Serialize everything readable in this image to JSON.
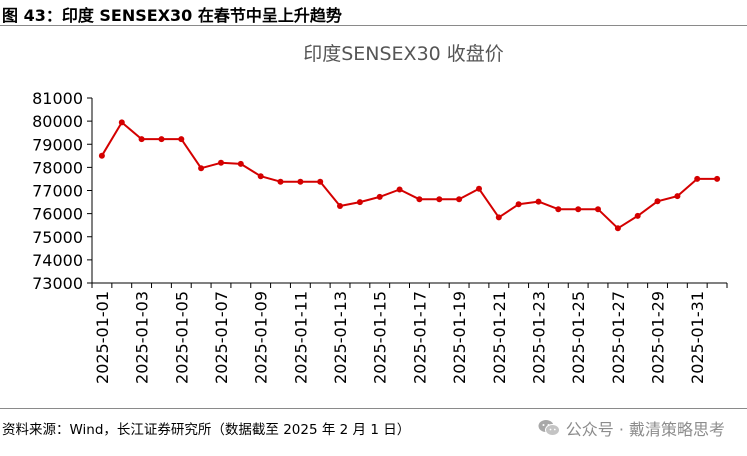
{
  "figure": {
    "title": "图 43：印度 SENSEX30 在春节中呈上升趋势",
    "source": "资料来源：Wind，长江证券研究所（数据截至 2025 年 2 月 1 日）",
    "watermark": "公众号 · 戴清策略思考"
  },
  "colors": {
    "line": "#d40000",
    "axis": "#000000",
    "title_text": "#555555",
    "rule": "#8a8a8a",
    "watermark": "#8c8c8c"
  },
  "chart_data": {
    "type": "line",
    "title": "印度SENSEX30 收盘价",
    "xlabel": "",
    "ylabel": "",
    "ylim": [
      73000,
      81000
    ],
    "yticks": [
      73000,
      74000,
      75000,
      76000,
      77000,
      78000,
      79000,
      80000,
      81000
    ],
    "grid": false,
    "x": [
      "2025-01-01",
      "2025-01-02",
      "2025-01-03",
      "2025-01-04",
      "2025-01-05",
      "2025-01-06",
      "2025-01-07",
      "2025-01-08",
      "2025-01-09",
      "2025-01-10",
      "2025-01-11",
      "2025-01-12",
      "2025-01-13",
      "2025-01-14",
      "2025-01-15",
      "2025-01-16",
      "2025-01-17",
      "2025-01-18",
      "2025-01-19",
      "2025-01-20",
      "2025-01-21",
      "2025-01-22",
      "2025-01-23",
      "2025-01-24",
      "2025-01-25",
      "2025-01-26",
      "2025-01-27",
      "2025-01-28",
      "2025-01-29",
      "2025-01-30",
      "2025-01-31",
      "2025-02-01"
    ],
    "xtick_labels": [
      "2025-01-01",
      "2025-01-03",
      "2025-01-05",
      "2025-01-07",
      "2025-01-09",
      "2025-01-11",
      "2025-01-13",
      "2025-01-15",
      "2025-01-17",
      "2025-01-19",
      "2025-01-21",
      "2025-01-23",
      "2025-01-25",
      "2025-01-27",
      "2025-01-29",
      "2025-01-31"
    ],
    "series": [
      {
        "name": "印度SENSEX30 收盘价",
        "values": [
          78507,
          79943,
          79223,
          79223,
          79223,
          77965,
          78199,
          78149,
          77620,
          77379,
          77379,
          77379,
          76330,
          76500,
          76724,
          77043,
          76619,
          76619,
          76619,
          77073,
          75838,
          76405,
          76520,
          76190,
          76190,
          76190,
          75366,
          75901,
          76532,
          76760,
          77501,
          77501
        ]
      }
    ]
  }
}
